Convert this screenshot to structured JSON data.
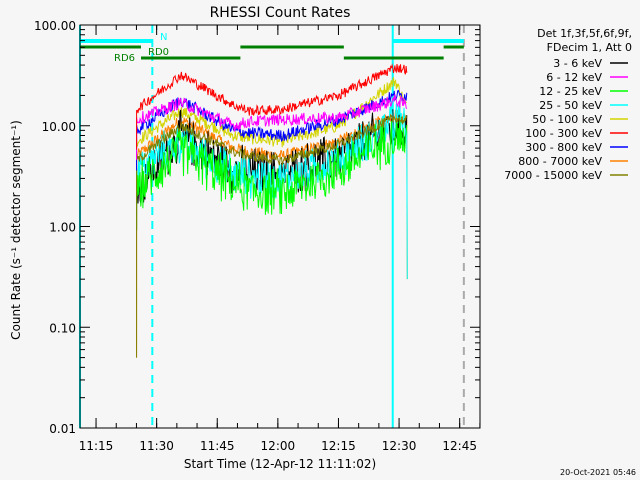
{
  "chart_data": {
    "type": "line",
    "title": "RHESSI Count Rates",
    "xlabel": "Start Time (12-Apr-12 11:11:02)",
    "ylabel": "Count Rate (s⁻¹ detector segment⁻¹)",
    "yscale": "log",
    "ylim": [
      0.01,
      100
    ],
    "xlim_minutes_after_start": [
      0,
      99
    ],
    "x_ticks": [
      {
        "label": "11:15",
        "minutes": 3.97
      },
      {
        "label": "11:30",
        "minutes": 18.97
      },
      {
        "label": "11:45",
        "minutes": 33.97
      },
      {
        "label": "12:00",
        "minutes": 48.97
      },
      {
        "label": "12:15",
        "minutes": 63.97
      },
      {
        "label": "12:30",
        "minutes": 78.97
      },
      {
        "label": "12:45",
        "minutes": 93.97
      }
    ],
    "y_ticks": [
      {
        "label": "100.00",
        "value": 100
      },
      {
        "label": "10.00",
        "value": 10
      },
      {
        "label": "1.00",
        "value": 1
      },
      {
        "label": "0.10",
        "value": 0.1
      },
      {
        "label": "0.01",
        "value": 0.01
      }
    ],
    "legend_header": [
      "Det 1f,3f,5f,6f,9f,",
      "FDecim 1, Att 0"
    ],
    "legend_position": "right",
    "x_minutes": [
      14,
      25,
      38,
      42,
      50,
      64,
      78,
      81
    ],
    "series": [
      {
        "name": "3 - 6 keV",
        "color": "#000000",
        "values": [
          2.3,
          8,
          3.7,
          3.5,
          3.3,
          5,
          10,
          9
        ]
      },
      {
        "name": "6 - 12 keV",
        "color": "#ff00ff",
        "values": [
          11.5,
          17,
          10,
          11,
          11.5,
          12,
          18,
          16
        ]
      },
      {
        "name": "12 - 25 keV",
        "color": "#00ff00",
        "values": [
          2.3,
          5.8,
          2.6,
          2.3,
          2.1,
          3.7,
          8,
          7
        ]
      },
      {
        "name": "25 - 50 keV",
        "color": "#00ffff",
        "values": [
          3.7,
          7,
          3.3,
          3.1,
          2.9,
          4.6,
          11.5,
          10
        ]
      },
      {
        "name": "50 - 100 keV",
        "color": "#d4d400",
        "values": [
          7,
          14,
          8,
          7.5,
          7,
          10,
          28,
          15
        ]
      },
      {
        "name": "100 - 300 keV",
        "color": "#ff0000",
        "values": [
          14.5,
          32,
          16,
          14,
          14.5,
          20,
          38,
          36
        ]
      },
      {
        "name": "300 - 800 keV",
        "color": "#0000ff",
        "values": [
          9,
          18,
          9,
          8.5,
          8,
          11.5,
          20,
          20
        ]
      },
      {
        "name": "800 - 7000 keV",
        "color": "#ff8000",
        "values": [
          5,
          11.5,
          6,
          5.5,
          5,
          7,
          13,
          12
        ]
      },
      {
        "name": "7000 - 15000 keV",
        "color": "#808000",
        "values": [
          4.5,
          10,
          5.5,
          5,
          4.5,
          6.5,
          12,
          11
        ]
      }
    ],
    "vertical_lines": [
      {
        "minutes": 0,
        "color": "#00ffff",
        "style": "solid"
      },
      {
        "minutes": 17.9,
        "color": "#00ffff",
        "style": "dashed"
      },
      {
        "minutes": 77.4,
        "color": "#00ffff",
        "style": "solid"
      },
      {
        "minutes": 95,
        "color": "#aaaaaa",
        "style": "dashed"
      }
    ],
    "annotation_bars": [
      {
        "label": "N",
        "color": "#00ffff",
        "level": "top",
        "ranges": [
          [
            0,
            17.9
          ],
          [
            77.4,
            95
          ]
        ]
      },
      {
        "label": "RD0",
        "color": "#008000",
        "level": "middle",
        "ranges": [
          [
            0,
            15.1
          ],
          [
            39.7,
            65.3
          ],
          [
            90,
            95
          ]
        ]
      },
      {
        "label": "RD6",
        "color": "#008000",
        "level": "lower",
        "ranges": [
          [
            15.1,
            39.7
          ],
          [
            65.3,
            90
          ]
        ]
      }
    ],
    "timestamp": "20-Oct-2021 05:46"
  }
}
